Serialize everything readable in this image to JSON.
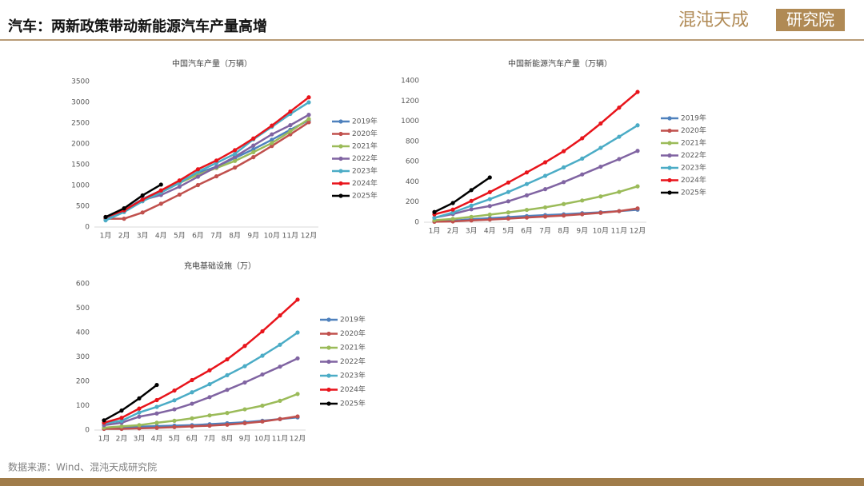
{
  "header": {
    "title": "汽车：两新政策带动新能源汽车产量高增",
    "logo_left": "混沌天成",
    "logo_right": "研究院"
  },
  "source": "数据来源：Wind、混沌天成研究院",
  "chart_data": [
    {
      "type": "line",
      "title": "中国汽车产量（万辆）",
      "categories": [
        "1月",
        "2月",
        "3月",
        "4月",
        "5月",
        "6月",
        "7月",
        "8月",
        "9月",
        "10月",
        "11月",
        "12月"
      ],
      "ylim": [
        0,
        3500
      ],
      "yticks": [
        0,
        500,
        1000,
        1500,
        2000,
        2500,
        3000,
        3500
      ],
      "grid": false,
      "legend": "right",
      "series": [
        {
          "name": "2019年",
          "color": "#4f81bd",
          "values": [
            210,
            410,
            670,
            880,
            1090,
            1300,
            1450,
            1660,
            1870,
            2100,
            2340,
            2570
          ]
        },
        {
          "name": "2020年",
          "color": "#c0504d",
          "values": [
            200,
            200,
            350,
            560,
            780,
            1010,
            1220,
            1430,
            1680,
            1950,
            2230,
            2520
          ]
        },
        {
          "name": "2021年",
          "color": "#9bbb59",
          "values": [
            240,
            390,
            640,
            860,
            1060,
            1260,
            1420,
            1590,
            1800,
            2020,
            2300,
            2600
          ]
        },
        {
          "name": "2022年",
          "color": "#8064a2",
          "values": [
            240,
            390,
            650,
            770,
            970,
            1210,
            1450,
            1690,
            1960,
            2230,
            2450,
            2700
          ]
        },
        {
          "name": "2023年",
          "color": "#4bacc6",
          "values": [
            160,
            360,
            620,
            830,
            1060,
            1330,
            1540,
            1760,
            2110,
            2410,
            2720,
            3000
          ]
        },
        {
          "name": "2024年",
          "color": "#e8141b",
          "values": [
            240,
            400,
            660,
            880,
            1120,
            1390,
            1600,
            1850,
            2130,
            2440,
            2780,
            3120
          ]
        },
        {
          "name": "2025年",
          "color": "#000000",
          "values": [
            240,
            450,
            760,
            1020,
            null,
            null,
            null,
            null,
            null,
            null,
            null,
            null
          ]
        }
      ]
    },
    {
      "type": "line",
      "title": "中国新能源汽车产量（万辆）",
      "categories": [
        "1月",
        "2月",
        "3月",
        "4月",
        "5月",
        "6月",
        "7月",
        "8月",
        "9月",
        "10月",
        "11月",
        "12月"
      ],
      "ylim": [
        0,
        1400
      ],
      "yticks": [
        0,
        200,
        400,
        600,
        800,
        1000,
        1200,
        1400
      ],
      "grid": false,
      "legend": "right",
      "series": [
        {
          "name": "2019年",
          "color": "#4f81bd",
          "values": [
            9,
            15,
            30,
            40,
            50,
            61,
            70,
            78,
            89,
            98,
            110,
            124
          ]
        },
        {
          "name": "2020年",
          "color": "#c0504d",
          "values": [
            5,
            8,
            18,
            26,
            36,
            46,
            56,
            66,
            79,
            93,
            110,
            137
          ]
        },
        {
          "name": "2021年",
          "color": "#9bbb59",
          "values": [
            20,
            33,
            53,
            75,
            97,
            122,
            147,
            180,
            215,
            255,
            300,
            355
          ]
        },
        {
          "name": "2022年",
          "color": "#8064a2",
          "values": [
            45,
            81,
            128,
            160,
            207,
            266,
            327,
            397,
            473,
            549,
            625,
            706
          ]
        },
        {
          "name": "2023年",
          "color": "#4bacc6",
          "values": [
            43,
            96,
            164,
            228,
            299,
            378,
            459,
            543,
            630,
            736,
            846,
            959
          ]
        },
        {
          "name": "2024年",
          "color": "#e8141b",
          "values": [
            78,
            125,
            211,
            298,
            393,
            493,
            593,
            703,
            831,
            977,
            1134,
            1289
          ]
        },
        {
          "name": "2025年",
          "color": "#000000",
          "values": [
            101,
            190,
            318,
            443,
            null,
            null,
            null,
            null,
            null,
            null,
            null,
            null
          ]
        }
      ]
    },
    {
      "type": "line",
      "title": "充电基础设施（万）",
      "categories": [
        "1月",
        "2月",
        "3月",
        "4月",
        "5月",
        "6月",
        "7月",
        "8月",
        "9月",
        "10月",
        "11月",
        "12月"
      ],
      "ylim": [
        0,
        600
      ],
      "yticks": [
        0,
        100,
        200,
        300,
        400,
        500,
        600
      ],
      "grid": false,
      "legend": "right",
      "series": [
        {
          "name": "2019年",
          "color": "#4f81bd",
          "values": [
            10,
            12,
            14,
            16,
            18,
            20,
            24,
            28,
            32,
            38,
            45,
            52
          ]
        },
        {
          "name": "2020年",
          "color": "#c0504d",
          "values": [
            5,
            5,
            7,
            9,
            12,
            15,
            18,
            22,
            28,
            35,
            45,
            56
          ]
        },
        {
          "name": "2021年",
          "color": "#9bbb59",
          "values": [
            10,
            15,
            20,
            30,
            38,
            48,
            60,
            70,
            85,
            100,
            120,
            148
          ]
        },
        {
          "name": "2022年",
          "color": "#8064a2",
          "values": [
            20,
            30,
            55,
            68,
            85,
            108,
            135,
            165,
            195,
            228,
            260,
            294
          ]
        },
        {
          "name": "2023年",
          "color": "#4bacc6",
          "values": [
            28,
            38,
            72,
            95,
            122,
            155,
            188,
            225,
            262,
            305,
            350,
            400
          ]
        },
        {
          "name": "2024年",
          "color": "#e8141b",
          "values": [
            30,
            50,
            88,
            123,
            162,
            205,
            245,
            290,
            345,
            405,
            470,
            535
          ]
        },
        {
          "name": "2025年",
          "color": "#000000",
          "values": [
            40,
            80,
            130,
            185,
            null,
            null,
            null,
            null,
            null,
            null,
            null,
            null
          ]
        }
      ]
    }
  ]
}
